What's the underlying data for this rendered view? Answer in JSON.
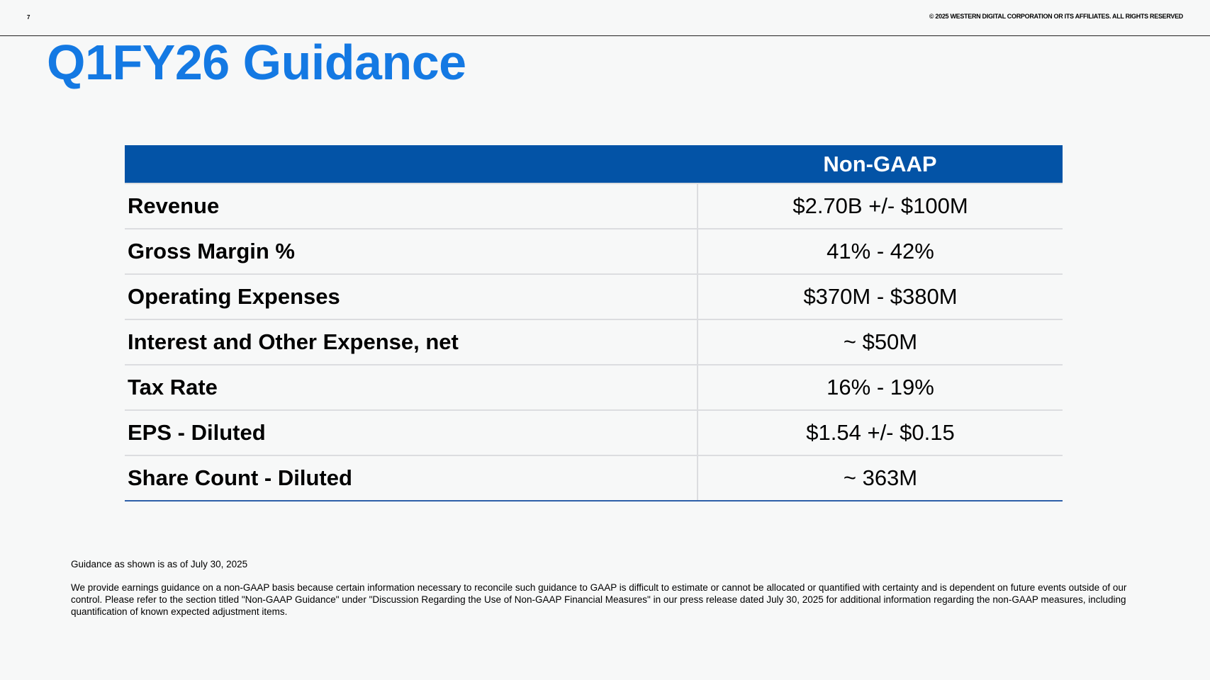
{
  "header": {
    "page_number": "7",
    "copyright": "© 2025 WESTERN DIGITAL CORPORATION OR ITS AFFILIATES. ALL RIGHTS RESERVED"
  },
  "title": "Q1FY26 Guidance",
  "table": {
    "header_label": "",
    "header_value": "Non-GAAP",
    "rows": [
      {
        "label": "Revenue",
        "value": "$2.70B +/- $100M"
      },
      {
        "label": "Gross Margin %",
        "value": "41% - 42%"
      },
      {
        "label": "Operating Expenses",
        "value": "$370M - $380M"
      },
      {
        "label": "Interest and Other Expense, net",
        "value": "~ $50M"
      },
      {
        "label": "Tax Rate",
        "value": "16% - 19%"
      },
      {
        "label": "EPS - Diluted",
        "value": "$1.54 +/- $0.15"
      },
      {
        "label": "Share Count - Diluted",
        "value": "~ 363M"
      }
    ]
  },
  "footnotes": {
    "date_note": "Guidance as shown is as of July 30, 2025",
    "disclaimer": "We provide earnings guidance on a non-GAAP basis because certain information necessary to reconcile such guidance to GAAP is difficult to estimate or cannot be allocated or quantified with certainty and is dependent on future events outside of our control. Please refer to the section titled \"Non-GAAP Guidance\" under \"Discussion Regarding the Use of Non-GAAP Financial Measures\" in our press release dated July 30, 2025 for additional information regarding the non-GAAP measures, including quantification of known expected adjustment items."
  },
  "colors": {
    "title": "#1479e3",
    "table_header": "#0353a6",
    "background": "#f7f8f8"
  }
}
